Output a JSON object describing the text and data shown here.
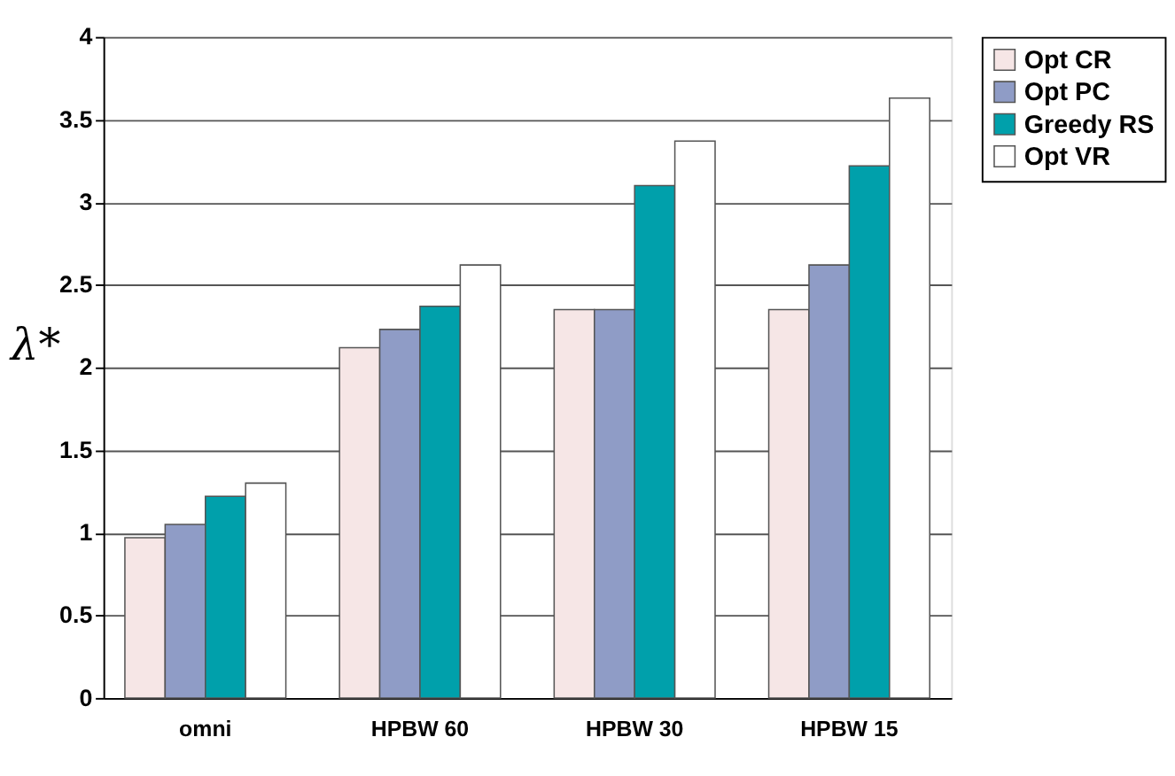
{
  "chart_data": {
    "type": "bar",
    "ylabel": "λ*",
    "categories": [
      "omni",
      "HPBW 60",
      "HPBW 30",
      "HPBW 15"
    ],
    "series": [
      {
        "name": "Opt CR",
        "color": "#f6e6e6",
        "values": [
          0.97,
          2.12,
          2.35,
          2.35
        ]
      },
      {
        "name": "Opt PC",
        "color": "#8f9cc6",
        "values": [
          1.05,
          2.23,
          2.35,
          2.62
        ]
      },
      {
        "name": "Greedy RS",
        "color": "#00a0ab",
        "values": [
          1.22,
          2.37,
          3.1,
          3.22
        ]
      },
      {
        "name": "Opt VR",
        "color": "#ffffff",
        "values": [
          1.3,
          2.62,
          3.37,
          3.63
        ]
      }
    ],
    "ylim": [
      0,
      4
    ],
    "yticks": [
      0,
      0.5,
      1,
      1.5,
      2,
      2.5,
      3,
      3.5,
      4
    ],
    "grid": "y",
    "legend": "right"
  }
}
